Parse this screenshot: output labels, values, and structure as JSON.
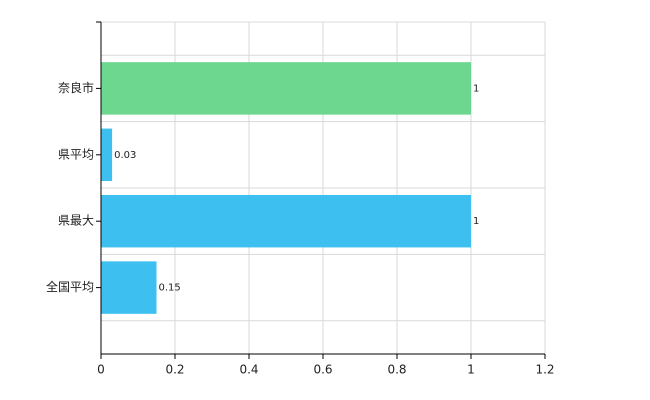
{
  "chart_data": {
    "type": "hbar",
    "categories": [
      "奈良市",
      "県平均",
      "県最大",
      "全国平均"
    ],
    "values": [
      1,
      0.03,
      1,
      0.15
    ],
    "colors": [
      "#6dd68f",
      "#3dbff0",
      "#3dbff0",
      "#3dbff0"
    ],
    "xlim": [
      0,
      1.2
    ],
    "xticks": [
      0,
      0.2,
      0.4,
      0.6,
      0.8,
      1,
      1.2
    ],
    "grid": true
  }
}
